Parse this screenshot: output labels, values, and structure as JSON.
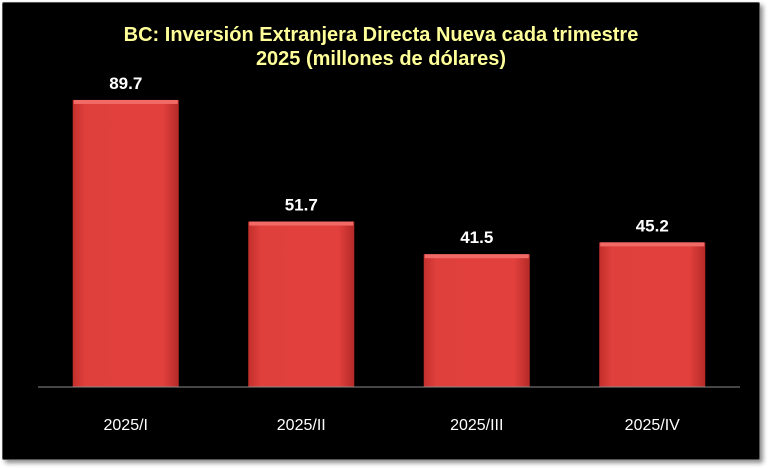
{
  "chart_data": {
    "type": "bar",
    "title_line1": "BC: Inversión Extranjera Directa Nueva cada trimestre",
    "title_line2": "2025  (millones de dólares)",
    "xlabel": "",
    "ylabel": "",
    "categories": [
      "2025/I",
      "2025/II",
      "2025/III",
      "2025/IV"
    ],
    "values": [
      89.7,
      51.7,
      41.5,
      45.2
    ],
    "value_labels": [
      "89.7",
      "51.7",
      "41.5",
      "45.2"
    ],
    "ylim": [
      0,
      100
    ],
    "grid": false,
    "legend": "none"
  },
  "colors": {
    "background": "#000000",
    "title": "#ffff99",
    "bar": "#e2403d",
    "bar_top": "#f26a66",
    "bar_dark": "#b52a27",
    "labels": "#ffffff",
    "axis": "#8a8a8a"
  }
}
